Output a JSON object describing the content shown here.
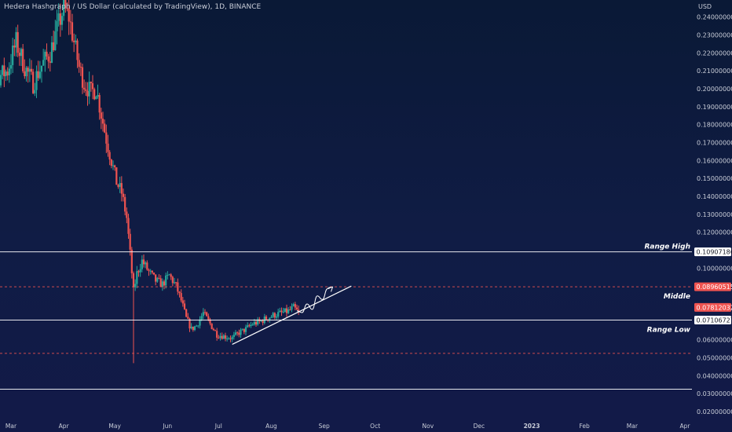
{
  "header": {
    "title": "Hedera Hashgraph / US Dollar (calculated by TradingView), 1D, BINANCE",
    "currency": "USD"
  },
  "colors": {
    "up": "#26a69a",
    "down": "#ef5350",
    "text": "#c9cdd8",
    "level_line": "#ffffff",
    "dashed_line": "#ef5350",
    "badge_red": "#ef5350",
    "badge_white": "#ffffff"
  },
  "chart_data": {
    "type": "candlestick",
    "y_axis": {
      "min": 0.015,
      "max": 0.2475,
      "ticks": [
        0.24,
        0.23,
        0.22,
        0.21,
        0.2,
        0.19,
        0.18,
        0.17,
        0.16,
        0.15,
        0.14,
        0.13,
        0.12,
        0.1,
        0.06,
        0.05,
        0.04,
        0.03,
        0.02
      ],
      "tick_format_decimals": 8
    },
    "x_axis": {
      "labels": [
        {
          "label": "Mar",
          "date": "2022-03-01"
        },
        {
          "label": "Apr",
          "date": "2022-04-01"
        },
        {
          "label": "May",
          "date": "2022-05-01"
        },
        {
          "label": "Jun",
          "date": "2022-06-01"
        },
        {
          "label": "Jul",
          "date": "2022-07-01"
        },
        {
          "label": "Aug",
          "date": "2022-08-01"
        },
        {
          "label": "Sep",
          "date": "2022-09-01"
        },
        {
          "label": "Oct",
          "date": "2022-10-01"
        },
        {
          "label": "Nov",
          "date": "2022-11-01"
        },
        {
          "label": "Dec",
          "date": "2022-12-01"
        },
        {
          "label": "2023",
          "date": "2023-01-01",
          "bold": true
        },
        {
          "label": "Feb",
          "date": "2023-02-01"
        },
        {
          "label": "Mar",
          "date": "2023-03-01"
        },
        {
          "label": "Apr",
          "date": "2023-04-01"
        }
      ]
    },
    "price_path": [
      [
        "2022-02-08",
        0.205
      ],
      [
        "2022-02-12",
        0.222
      ],
      [
        "2022-02-17",
        0.232
      ],
      [
        "2022-02-22",
        0.207
      ],
      [
        "2022-02-27",
        0.21
      ],
      [
        "2022-03-04",
        0.226
      ],
      [
        "2022-03-09",
        0.212
      ],
      [
        "2022-03-14",
        0.203
      ],
      [
        "2022-03-19",
        0.213
      ],
      [
        "2022-03-24",
        0.22
      ],
      [
        "2022-03-29",
        0.236
      ],
      [
        "2022-04-01",
        0.245
      ],
      [
        "2022-04-04",
        0.24
      ],
      [
        "2022-04-07",
        0.226
      ],
      [
        "2022-04-10",
        0.212
      ],
      [
        "2022-04-13",
        0.203
      ],
      [
        "2022-04-17",
        0.198
      ],
      [
        "2022-04-20",
        0.2
      ],
      [
        "2022-04-23",
        0.186
      ],
      [
        "2022-04-26",
        0.172
      ],
      [
        "2022-04-29",
        0.16
      ],
      [
        "2022-05-02",
        0.148
      ],
      [
        "2022-05-05",
        0.142
      ],
      [
        "2022-05-08",
        0.128
      ],
      [
        "2022-05-10",
        0.108
      ],
      [
        "2022-05-12",
        0.087
      ],
      [
        "2022-05-14",
        0.097
      ],
      [
        "2022-05-17",
        0.104
      ],
      [
        "2022-05-21",
        0.098
      ],
      [
        "2022-05-25",
        0.093
      ],
      [
        "2022-05-29",
        0.091
      ],
      [
        "2022-06-02",
        0.096
      ],
      [
        "2022-06-06",
        0.09
      ],
      [
        "2022-06-09",
        0.082
      ],
      [
        "2022-06-12",
        0.072
      ],
      [
        "2022-06-15",
        0.066
      ],
      [
        "2022-06-18",
        0.068
      ],
      [
        "2022-06-22",
        0.075
      ],
      [
        "2022-06-26",
        0.069
      ],
      [
        "2022-06-30",
        0.063
      ],
      [
        "2022-07-04",
        0.062
      ],
      [
        "2022-07-09",
        0.061
      ],
      [
        "2022-07-13",
        0.064
      ],
      [
        "2022-07-17",
        0.066
      ],
      [
        "2022-07-21",
        0.069
      ],
      [
        "2022-07-25",
        0.07
      ],
      [
        "2022-07-29",
        0.072
      ],
      [
        "2022-08-03",
        0.074
      ],
      [
        "2022-08-07",
        0.075
      ],
      [
        "2022-08-11",
        0.076
      ],
      [
        "2022-08-14",
        0.078
      ],
      [
        "2022-08-17",
        0.075
      ]
    ],
    "price_spikes": [
      {
        "date": "2022-05-12",
        "low": 0.047
      }
    ],
    "horizontal_levels": [
      {
        "name": "range-high",
        "price": 0.10907186,
        "style": "solid",
        "label": "Range High",
        "badge": "0.10907186",
        "badge_style": "white"
      },
      {
        "name": "middle",
        "price": 0.08960515,
        "style": "dashed",
        "label": "Middle",
        "badge": "0.08960515",
        "badge_style": "red"
      },
      {
        "name": "range-low",
        "price": 0.07106727,
        "style": "solid",
        "label": "Range Low",
        "badge": "0.07106727",
        "badge_style": "white"
      },
      {
        "name": "lower-dashed",
        "price": 0.0525,
        "style": "dashed"
      },
      {
        "name": "bottom-solid",
        "price": 0.0325,
        "style": "solid"
      }
    ],
    "current_price": {
      "price": 0.07812032,
      "badge": "0.07812032"
    },
    "trendline": {
      "from": [
        "2022-07-09",
        0.0575
      ],
      "to": [
        "2022-09-17",
        0.09
      ]
    },
    "projection_path": [
      [
        "2022-08-16",
        0.0762
      ],
      [
        "2022-08-19",
        0.0752
      ],
      [
        "2022-08-22",
        0.08
      ],
      [
        "2022-08-25",
        0.077
      ],
      [
        "2022-08-28",
        0.0845
      ],
      [
        "2022-08-31",
        0.0825
      ],
      [
        "2022-09-03",
        0.0885
      ],
      [
        "2022-09-06",
        0.0895
      ]
    ]
  }
}
